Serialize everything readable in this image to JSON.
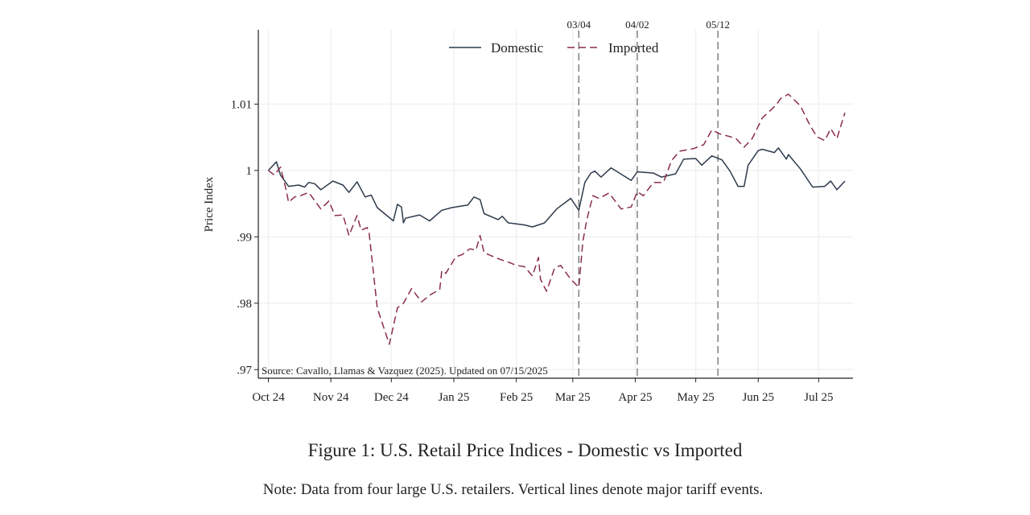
{
  "chart_data": {
    "type": "line",
    "title": "",
    "xlabel": "",
    "ylabel": "Price Index",
    "xlim": [
      "2024-09-26",
      "2025-07-18"
    ],
    "ylim": [
      0.9687,
      1.0212
    ],
    "x_ticks": [
      {
        "date": "2024-10-01",
        "label": "Oct 24"
      },
      {
        "date": "2024-11-01",
        "label": "Nov 24"
      },
      {
        "date": "2024-12-01",
        "label": "Dec 24"
      },
      {
        "date": "2025-01-01",
        "label": "Jan 25"
      },
      {
        "date": "2025-02-01",
        "label": "Feb 25"
      },
      {
        "date": "2025-03-01",
        "label": "Mar 25"
      },
      {
        "date": "2025-04-01",
        "label": "Apr 25"
      },
      {
        "date": "2025-05-01",
        "label": "May 25"
      },
      {
        "date": "2025-06-01",
        "label": "Jun 25"
      },
      {
        "date": "2025-07-01",
        "label": "Jul 25"
      }
    ],
    "y_ticks": [
      {
        "value": 0.97,
        "label": ".97"
      },
      {
        "value": 0.98,
        "label": ".98"
      },
      {
        "value": 0.99,
        "label": ".99"
      },
      {
        "value": 1.0,
        "label": "1"
      },
      {
        "value": 1.01,
        "label": "1.01"
      }
    ],
    "grid": true,
    "legend_placement": "top-center",
    "event_lines": [
      {
        "date": "2025-03-04",
        "label": "03/04"
      },
      {
        "date": "2025-04-02",
        "label": "04/02"
      },
      {
        "date": "2025-05-12",
        "label": "05/12"
      }
    ],
    "annotation": "Source: Cavallo, Llamas & Vazquez (2025). Updated on 07/15/2025",
    "series": [
      {
        "name": "Domestic",
        "color": "#2e3b4c",
        "style": "solid",
        "x": [
          "2024-10-01",
          "2024-10-05",
          "2024-10-07",
          "2024-10-11",
          "2024-10-16",
          "2024-10-19",
          "2024-10-21",
          "2024-10-24",
          "2024-10-27",
          "2024-11-02",
          "2024-11-07",
          "2024-11-10",
          "2024-11-14",
          "2024-11-18",
          "2024-11-21",
          "2024-11-24",
          "2024-12-02",
          "2024-12-04",
          "2024-12-06",
          "2024-12-07",
          "2024-12-08",
          "2024-12-15",
          "2024-12-20",
          "2024-12-26",
          "2024-12-31",
          "2025-01-08",
          "2025-01-11",
          "2025-01-14",
          "2025-01-16",
          "2025-01-23",
          "2025-01-25",
          "2025-01-28",
          "2025-02-05",
          "2025-02-09",
          "2025-02-15",
          "2025-02-21",
          "2025-02-28",
          "2025-03-04",
          "2025-03-07",
          "2025-03-10",
          "2025-03-12",
          "2025-03-15",
          "2025-03-20",
          "2025-03-30",
          "2025-04-02",
          "2025-04-10",
          "2025-04-14",
          "2025-04-21",
          "2025-04-25",
          "2025-05-01",
          "2025-05-04",
          "2025-05-09",
          "2025-05-14",
          "2025-05-18",
          "2025-05-22",
          "2025-05-25",
          "2025-05-27",
          "2025-06-01",
          "2025-06-03",
          "2025-06-09",
          "2025-06-11",
          "2025-06-15",
          "2025-06-16",
          "2025-06-22",
          "2025-06-28",
          "2025-07-04",
          "2025-07-07",
          "2025-07-10",
          "2025-07-14"
        ],
        "values": [
          1.0,
          1.0013,
          0.9993,
          0.9976,
          0.9978,
          0.9975,
          0.9982,
          0.998,
          0.9971,
          0.9984,
          0.9978,
          0.9967,
          0.9983,
          0.996,
          0.9963,
          0.9944,
          0.9924,
          0.9949,
          0.9945,
          0.9921,
          0.9928,
          0.9933,
          0.9924,
          0.994,
          0.9944,
          0.9948,
          0.996,
          0.9956,
          0.9935,
          0.9926,
          0.9931,
          0.9921,
          0.9918,
          0.9915,
          0.9921,
          0.9942,
          0.9958,
          0.994,
          0.9982,
          0.9996,
          0.9999,
          0.999,
          1.0004,
          0.9985,
          0.9998,
          0.9996,
          0.999,
          0.9995,
          1.0017,
          1.0018,
          1.0008,
          1.0022,
          1.0016,
          0.9999,
          0.9976,
          0.9976,
          1.0008,
          1.003,
          1.0032,
          1.0027,
          1.0034,
          1.0017,
          1.0024,
          1.0002,
          0.9975,
          0.9976,
          0.9984,
          0.9971,
          0.9984
        ]
      },
      {
        "name": "Imported",
        "color": "#8a2d4b",
        "style": "dashed",
        "x": [
          "2024-10-01",
          "2024-10-04",
          "2024-10-07",
          "2024-10-10",
          "2024-10-11",
          "2024-10-14",
          "2024-10-17",
          "2024-10-21",
          "2024-10-27",
          "2024-10-31",
          "2024-11-03",
          "2024-11-07",
          "2024-11-10",
          "2024-11-14",
          "2024-11-16",
          "2024-11-19",
          "2024-11-20",
          "2024-11-24",
          "2024-11-30",
          "2024-12-04",
          "2024-12-07",
          "2024-12-11",
          "2024-12-16",
          "2024-12-20",
          "2024-12-25",
          "2024-12-26",
          "2024-12-28",
          "2025-01-02",
          "2025-01-05",
          "2025-01-09",
          "2025-01-12",
          "2025-01-14",
          "2025-01-16",
          "2025-01-24",
          "2025-01-28",
          "2025-02-01",
          "2025-02-05",
          "2025-02-09",
          "2025-02-12",
          "2025-02-13",
          "2025-02-16",
          "2025-02-20",
          "2025-02-23",
          "2025-02-28",
          "2025-03-04",
          "2025-03-06",
          "2025-03-08",
          "2025-03-11",
          "2025-03-14",
          "2025-03-19",
          "2025-03-25",
          "2025-03-30",
          "2025-04-02",
          "2025-04-05",
          "2025-04-10",
          "2025-04-15",
          "2025-04-19",
          "2025-04-23",
          "2025-04-30",
          "2025-05-05",
          "2025-05-09",
          "2025-05-13",
          "2025-05-18",
          "2025-05-21",
          "2025-05-25",
          "2025-05-29",
          "2025-06-03",
          "2025-06-10",
          "2025-06-12",
          "2025-06-16",
          "2025-06-22",
          "2025-06-26",
          "2025-06-30",
          "2025-07-04",
          "2025-07-07",
          "2025-07-10",
          "2025-07-14"
        ],
        "values": [
          1.0,
          0.9993,
          1.0005,
          0.9968,
          0.9952,
          0.996,
          0.9962,
          0.9967,
          0.9942,
          0.9954,
          0.9932,
          0.9933,
          0.9902,
          0.9932,
          0.991,
          0.9914,
          0.9905,
          0.9793,
          0.9738,
          0.9793,
          0.98,
          0.9822,
          0.9802,
          0.9812,
          0.9821,
          0.9849,
          0.9845,
          0.987,
          0.9873,
          0.9882,
          0.988,
          0.9902,
          0.9876,
          0.9866,
          0.9862,
          0.9857,
          0.9855,
          0.9841,
          0.9869,
          0.9836,
          0.9818,
          0.9853,
          0.9857,
          0.9836,
          0.9824,
          0.9893,
          0.9926,
          0.9962,
          0.9958,
          0.9966,
          0.9942,
          0.9945,
          0.9968,
          0.9962,
          0.9982,
          0.9982,
          1.0015,
          1.0029,
          1.0033,
          1.0039,
          1.0061,
          1.0055,
          1.0051,
          1.0048,
          1.0035,
          1.0048,
          1.0079,
          1.0099,
          1.0108,
          1.0115,
          1.0097,
          1.0072,
          1.0051,
          1.0045,
          1.0063,
          1.0048,
          1.0087
        ]
      }
    ]
  },
  "figure": {
    "caption": "Figure 1: U.S. Retail Price Indices - Domestic vs Imported",
    "note": "Note: Data from four large U.S. retailers. Vertical lines denote major tariff events."
  }
}
